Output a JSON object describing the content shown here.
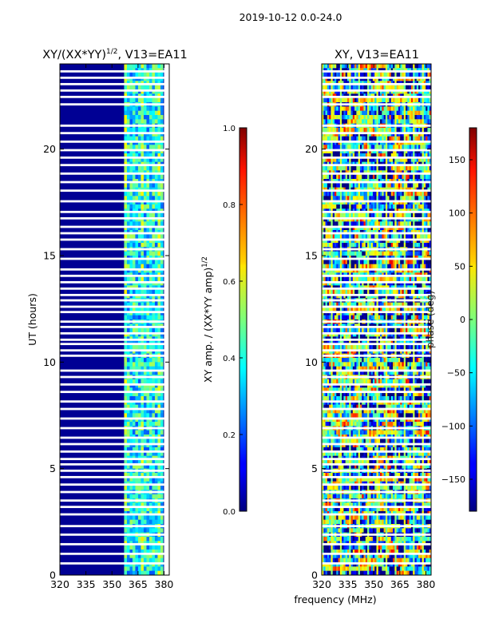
{
  "figure": {
    "suptitle": "2019-10-12 0.0-24.0",
    "shared_xlabel": "frequency (MHz)"
  },
  "chart_data": [
    {
      "type": "heatmap",
      "title": "XY/(XX*YY)^1/2, V13=EA11",
      "title_main": "XY/(XX*YY)",
      "title_sup": "1/2",
      "title_tail": ", V13=EA11",
      "xlabel": "frequency (MHz)",
      "ylabel": "UT (hours)",
      "xlim": [
        320,
        383
      ],
      "ylim": [
        0,
        24
      ],
      "xticks": [
        320,
        335,
        350,
        365,
        380
      ],
      "yticks": [
        0,
        5,
        10,
        15,
        20
      ],
      "xtick_labels": [
        "320",
        "335",
        "350",
        "365",
        "380"
      ],
      "ytick_labels": [
        "0",
        "5",
        "10",
        "15",
        "20"
      ],
      "colorbar": {
        "label": "XY amp. / (XX*YY amp)^1/2",
        "label_main": "XY amp. / (XX*YY amp)",
        "label_sup": "1/2",
        "range": [
          0.0,
          1.0
        ],
        "ticks": [
          0.0,
          0.2,
          0.4,
          0.6,
          0.8,
          1.0
        ],
        "tick_labels": [
          "0.0",
          "0.2",
          "0.4",
          "0.6",
          "0.8",
          "1.0"
        ],
        "colormap": "jet"
      },
      "description_values": {
        "low_band_mhz": [
          320,
          357
        ],
        "low_band_value": 0.02,
        "high_band_mhz": [
          357,
          380
        ],
        "high_band_value_range": [
          0.2,
          0.55
        ]
      }
    },
    {
      "type": "heatmap",
      "title": "XY, V13=EA11",
      "xlabel": "frequency (MHz)",
      "ylabel": "",
      "xlim": [
        320,
        383
      ],
      "ylim": [
        0,
        24
      ],
      "xticks": [
        320,
        335,
        350,
        365,
        380
      ],
      "yticks": [
        0,
        5,
        10,
        15,
        20
      ],
      "xtick_labels": [
        "320",
        "335",
        "350",
        "365",
        "380"
      ],
      "ytick_labels": [
        "0",
        "5",
        "10",
        "15",
        "20"
      ],
      "colorbar": {
        "label": "phase (deg)",
        "range": [
          -180,
          180
        ],
        "ticks": [
          -150,
          -100,
          -50,
          0,
          50,
          100,
          150
        ],
        "tick_labels": [
          "−150",
          "−100",
          "−50",
          "0",
          "50",
          "100",
          "150"
        ],
        "colormap": "jet"
      },
      "description_values": {
        "phase_range_deg": [
          -180,
          180
        ]
      }
    }
  ],
  "flagged_rows_hours": [
    0.55,
    1.0,
    1.45,
    1.9,
    2.3,
    2.85,
    3.2,
    3.5,
    3.9,
    4.25,
    4.6,
    4.9,
    5.2,
    5.45,
    5.8,
    6.15,
    6.45,
    6.9,
    7.35,
    7.8,
    8.15,
    8.6,
    8.95,
    9.3,
    9.6,
    10.3,
    10.55,
    10.85,
    11.05,
    11.35,
    11.65,
    11.9,
    12.35,
    12.6,
    12.9,
    13.15,
    13.45,
    13.75,
    14.05,
    14.35,
    14.85,
    15.3,
    15.75,
    16.05,
    16.35,
    16.75,
    17.05,
    17.55,
    18.05,
    18.45,
    18.85,
    19.25,
    19.6,
    19.95,
    20.35,
    20.75,
    21.1,
    22.1,
    22.45,
    22.75,
    23.05,
    23.35,
    23.65
  ]
}
